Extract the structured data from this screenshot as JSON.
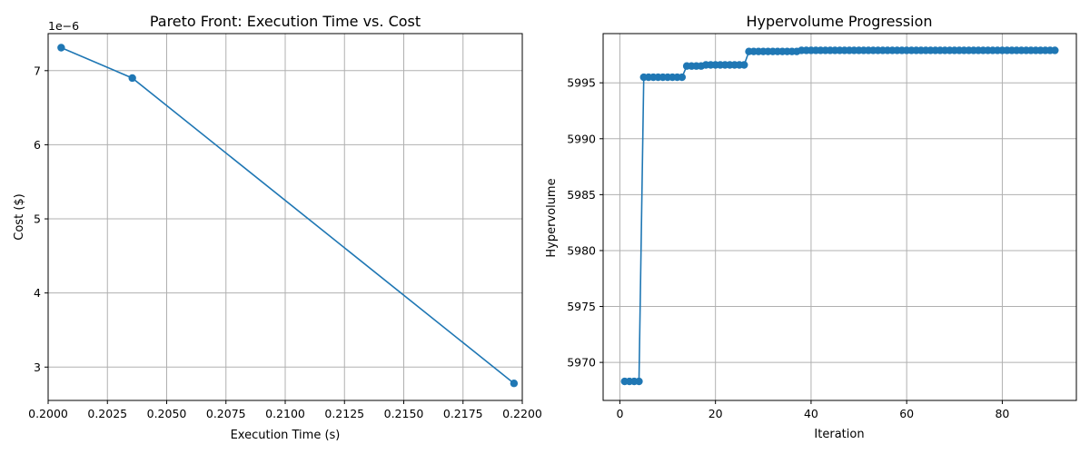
{
  "chart_data": [
    {
      "type": "line",
      "title": "Pareto Front: Execution Time vs. Cost",
      "xlabel": "Execution Time (s)",
      "ylabel": "Cost ($)",
      "y_offset_label": "1e−6",
      "xlim": [
        0.2,
        0.22
      ],
      "ylim": [
        2.55,
        7.5
      ],
      "xticks": [
        0.2,
        0.2025,
        0.205,
        0.2075,
        0.21,
        0.2125,
        0.215,
        0.2175,
        0.22
      ],
      "xtick_labels": [
        "0.2000",
        "0.2025",
        "0.2050",
        "0.2075",
        "0.2100",
        "0.2125",
        "0.2150",
        "0.2175",
        "0.2200"
      ],
      "yticks": [
        3,
        4,
        5,
        6,
        7
      ],
      "ytick_labels": [
        "3",
        "4",
        "5",
        "6",
        "7"
      ],
      "grid": true,
      "color": "#1f77b4",
      "markers": true,
      "x": [
        0.20055,
        0.20355,
        0.21965
      ],
      "y": [
        7.31,
        6.9,
        2.78
      ]
    },
    {
      "type": "line",
      "title": "Hypervolume Progression",
      "xlabel": "Iteration",
      "ylabel": "Hypervolume",
      "xlim": [
        -3.5,
        95.5
      ],
      "ylim": [
        5966.6,
        5999.4
      ],
      "xticks": [
        0,
        20,
        40,
        60,
        80
      ],
      "xtick_labels": [
        "0",
        "20",
        "40",
        "60",
        "80"
      ],
      "yticks": [
        5970,
        5975,
        5980,
        5985,
        5990,
        5995
      ],
      "ytick_labels": [
        "5970",
        "5975",
        "5980",
        "5985",
        "5990",
        "5995"
      ],
      "grid": true,
      "color": "#1f77b4",
      "markers": true,
      "segments": [
        {
          "from": 1,
          "to": 4,
          "value": 5968.3
        },
        {
          "from": 5,
          "to": 13,
          "value": 5995.5
        },
        {
          "from": 14,
          "to": 17,
          "value": 5996.5
        },
        {
          "from": 18,
          "to": 26,
          "value": 5996.6
        },
        {
          "from": 27,
          "to": 37,
          "value": 5997.8
        },
        {
          "from": 38,
          "to": 91,
          "value": 5997.9
        }
      ]
    }
  ]
}
